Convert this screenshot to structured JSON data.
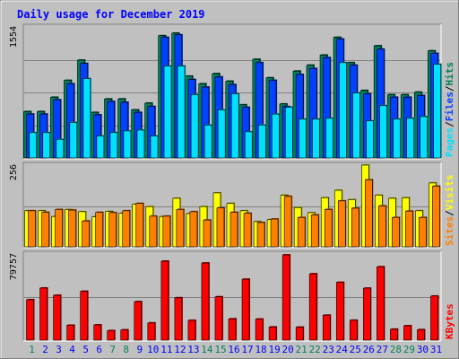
{
  "colors": {
    "frame_bg": "#c0c0c0",
    "plot_bg": "#c0c0c0",
    "title": "#0000ff",
    "hits": "#00805c",
    "files": "#0040ff",
    "pages": "#00e0ff",
    "visits": "#ffff00",
    "sites": "#ff8000",
    "kbytes": "#ff0000",
    "weekend_day_label": "#00805c",
    "weekday_label": "#0000ff"
  },
  "chart_data": {
    "type": "bar",
    "title": "Daily usage for December 2019",
    "categories": [
      "1",
      "2",
      "3",
      "4",
      "5",
      "6",
      "7",
      "8",
      "9",
      "10",
      "11",
      "12",
      "13",
      "14",
      "15",
      "16",
      "17",
      "18",
      "19",
      "20",
      "21",
      "22",
      "23",
      "24",
      "25",
      "26",
      "27",
      "28",
      "29",
      "30",
      "31"
    ],
    "weekend_days": [
      "1",
      "7",
      "8",
      "14",
      "15",
      "21",
      "22",
      "28",
      "29"
    ],
    "panels": [
      {
        "id": "hits-files-pages",
        "axis_max_label": "1554",
        "ylim": [
          0,
          1554
        ],
        "grid": true,
        "legend": [
          {
            "name": "Hits",
            "color_key": "hits"
          },
          {
            "name": "Files",
            "color_key": "files"
          },
          {
            "name": "Pages",
            "color_key": "pages"
          }
        ],
        "legend_separator": "/",
        "series": [
          {
            "name": "Hits",
            "color_key": "hits",
            "values": [
              550,
              550,
              720,
              920,
              1160,
              540,
              700,
              700,
              570,
              650,
              1450,
              1480,
              970,
              880,
              1000,
              910,
              630,
              1170,
              950,
              640,
              1030,
              1100,
              1220,
              1430,
              1130,
              800,
              1330,
              750,
              750,
              780,
              1270
            ]
          },
          {
            "name": "Files",
            "color_key": "files",
            "values": [
              520,
              520,
              690,
              880,
              1120,
              510,
              670,
              660,
              540,
              610,
              1430,
              1460,
              930,
              840,
              960,
              870,
              600,
              1130,
              920,
              610,
              990,
              1060,
              1190,
              1410,
              1100,
              760,
              1290,
              720,
              720,
              740,
              1240
            ]
          },
          {
            "name": "Pages",
            "color_key": "pages",
            "values": [
              300,
              300,
              220,
              420,
              940,
              260,
              300,
              320,
              330,
              260,
              1090,
              1090,
              750,
              390,
              570,
              760,
              310,
              390,
              520,
              600,
              460,
              460,
              470,
              1130,
              770,
              440,
              620,
              460,
              470,
              490,
              1110
            ]
          }
        ]
      },
      {
        "id": "visits-sites",
        "axis_max_label": "256",
        "ylim": [
          0,
          256
        ],
        "grid": true,
        "legend": [
          {
            "name": "Visits",
            "color_key": "visits"
          },
          {
            "name": "Sites",
            "color_key": "sites"
          }
        ],
        "legend_separator": "/",
        "series": [
          {
            "name": "Visits",
            "color_key": "visits",
            "values": [
              113,
              113,
              95,
              117,
              110,
              94,
              111,
              105,
              134,
              126,
              95,
              152,
              104,
              126,
              169,
              136,
              113,
              79,
              85,
              162,
              123,
              107,
              154,
              177,
              148,
              256,
              162,
              152,
              154,
              113,
              200
            ]
          },
          {
            "name": "Sites",
            "color_key": "sites",
            "values": [
              113,
              108,
              117,
              115,
              81,
              108,
              107,
              113,
              136,
              96,
              96,
              117,
              110,
              84,
              122,
              108,
              105,
              76,
              87,
              158,
              92,
              100,
              117,
              144,
              121,
              210,
              128,
              92,
              112,
              92,
              190
            ]
          }
        ]
      },
      {
        "id": "kbytes",
        "axis_max_label": "79757",
        "ylim": [
          0,
          79757
        ],
        "grid": true,
        "legend": [
          {
            "name": "KBytes",
            "color_key": "kbytes"
          }
        ],
        "legend_separator": "",
        "series": [
          {
            "name": "KBytes",
            "color_key": "kbytes",
            "values": [
              37400,
              48200,
              41500,
              13800,
              45200,
              14100,
              8800,
              9500,
              35600,
              15900,
              73100,
              39200,
              18300,
              71400,
              40100,
              19700,
              56400,
              19500,
              12200,
              78900,
              12000,
              61400,
              23100,
              53500,
              18400,
              48100,
              67900,
              10100,
              13300,
              9700,
              40800
            ]
          }
        ]
      }
    ]
  }
}
